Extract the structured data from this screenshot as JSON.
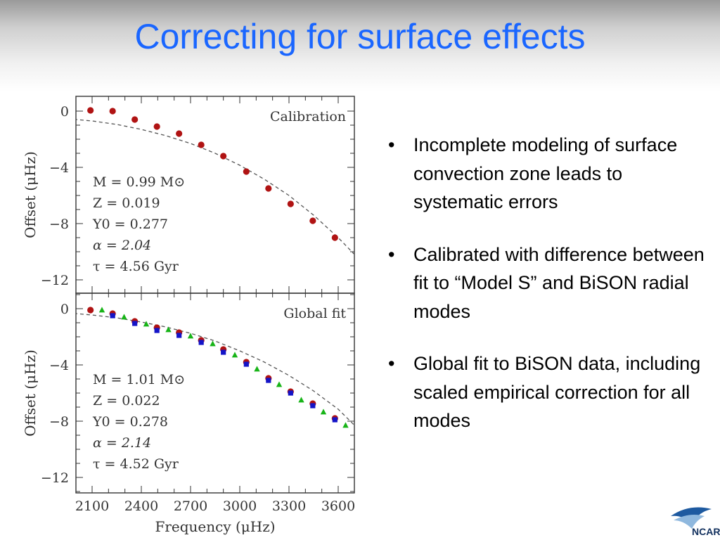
{
  "slide": {
    "title": "Correcting for surface effects"
  },
  "bullets": [
    "Incomplete modeling of surface convection zone leads to systematic errors",
    "Calibrated with difference between fit to “Model S” and BiSON radial modes",
    "Global fit to BiSON data, including scaled empirical correction for all modes"
  ],
  "bullet_symbol": "•",
  "logo": {
    "text": "NCAR"
  },
  "colors": {
    "title": "#1a66ff",
    "red_points": "#b01313",
    "blue_points": "#1414c8",
    "green_points": "#18b418",
    "dashed_line": "#555555"
  },
  "chart_data": [
    {
      "type": "scatter",
      "panel_label": "Calibration",
      "ylabel": "Offset (μHz)",
      "xlabel": "Frequency (μHz)",
      "xlim": [
        1950,
        3700
      ],
      "ylim": [
        -13,
        1
      ],
      "xticks": [
        2100,
        2400,
        2700,
        3000,
        3300,
        3600
      ],
      "yticks": [
        0,
        -4,
        -8,
        -12
      ],
      "ytick_labels": [
        "0",
        "−4",
        "−8",
        "−12"
      ],
      "params": [
        "M = 0.99  M⊙",
        "Z = 0.019",
        "Y0 = 0.277",
        "α = 2.04",
        "τ = 4.56  Gyr"
      ],
      "series": [
        {
          "marker": "circle",
          "color": "red",
          "x": [
            2090,
            2225,
            2360,
            2495,
            2630,
            2765,
            2900,
            3040,
            3175,
            3310,
            3445,
            3580
          ],
          "y": [
            0.05,
            0.0,
            -0.6,
            -1.1,
            -1.6,
            -2.4,
            -3.2,
            -4.3,
            -5.5,
            -6.6,
            -7.8,
            -9.0
          ]
        },
        {
          "marker": "dashed",
          "color": "dashed",
          "x": [
            1950,
            2100,
            2250,
            2400,
            2550,
            2700,
            2850,
            3000,
            3150,
            3300,
            3450,
            3600,
            3700
          ],
          "y": [
            -0.55,
            -0.7,
            -0.95,
            -1.3,
            -1.75,
            -2.3,
            -3.0,
            -3.85,
            -4.85,
            -6.0,
            -7.4,
            -9.0,
            -10.2
          ]
        }
      ]
    },
    {
      "type": "scatter",
      "panel_label": "Global fit",
      "ylabel": "Offset (μHz)",
      "xlabel": "Frequency (μHz)",
      "xlim": [
        1950,
        3700
      ],
      "ylim": [
        -13,
        1
      ],
      "xticks": [
        2100,
        2400,
        2700,
        3000,
        3300,
        3600
      ],
      "xtick_labels": [
        "2100",
        "2400",
        "2700",
        "3000",
        "3300",
        "3600"
      ],
      "yticks": [
        0,
        -4,
        -8,
        -12
      ],
      "ytick_labels": [
        "0",
        "−4",
        "−8",
        "−12"
      ],
      "params": [
        "M = 1.01  M⊙",
        "Z = 0.022",
        "Y0 = 0.278",
        "α = 2.14",
        "τ = 4.52  Gyr"
      ],
      "series": [
        {
          "marker": "circle",
          "color": "red",
          "x": [
            2090,
            2225,
            2360,
            2495,
            2630,
            2765,
            2900,
            3040,
            3175,
            3310,
            3445,
            3580
          ],
          "y": [
            -0.1,
            -0.35,
            -0.9,
            -1.35,
            -1.7,
            -2.25,
            -2.9,
            -3.8,
            -4.95,
            -5.9,
            -6.75,
            -7.8
          ]
        },
        {
          "marker": "square",
          "color": "blue",
          "x": [
            2225,
            2360,
            2495,
            2630,
            2765,
            2900,
            3040,
            3175,
            3310,
            3445,
            3580
          ],
          "y": [
            -0.5,
            -1.05,
            -1.55,
            -1.9,
            -2.4,
            -3.1,
            -3.95,
            -5.1,
            -6.0,
            -6.9,
            -7.9
          ]
        },
        {
          "marker": "triangle",
          "color": "green",
          "x": [
            2160,
            2295,
            2430,
            2565,
            2700,
            2835,
            2970,
            3105,
            3240,
            3375,
            3510,
            3645
          ],
          "y": [
            -0.1,
            -0.6,
            -1.1,
            -1.5,
            -1.95,
            -2.5,
            -3.3,
            -4.3,
            -5.4,
            -6.5,
            -7.35,
            -8.3
          ]
        },
        {
          "marker": "dashed",
          "color": "dashed",
          "x": [
            1950,
            2100,
            2250,
            2400,
            2550,
            2700,
            2850,
            3000,
            3150,
            3300,
            3450,
            3600,
            3700
          ],
          "y": [
            -0.3,
            -0.45,
            -0.65,
            -0.95,
            -1.3,
            -1.75,
            -2.3,
            -3.0,
            -3.8,
            -4.75,
            -5.85,
            -7.15,
            -8.3
          ]
        }
      ]
    }
  ]
}
